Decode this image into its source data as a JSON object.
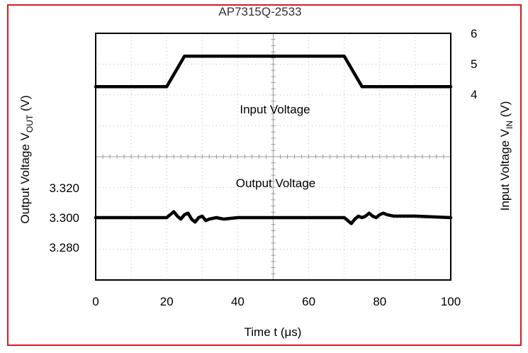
{
  "chart_data": {
    "type": "line",
    "title": "AP7315Q-2533",
    "xlabel": "Time t (μs)",
    "xlim": [
      0,
      100
    ],
    "x_ticks": [
      "0",
      "20",
      "40",
      "60",
      "80",
      "100"
    ],
    "grid": true,
    "left_axis": {
      "label_main": "Output Voltage V",
      "label_sub": "OUT",
      "label_unit": " (V)",
      "ticks": [
        "3.320",
        "3.300",
        "3.280"
      ],
      "tick_values": [
        3.32,
        3.3,
        3.28
      ]
    },
    "right_axis": {
      "label_main": "Input Voltage V",
      "label_sub": "IN",
      "label_unit": " (V)",
      "ticks": [
        "6",
        "5",
        "4"
      ],
      "tick_values": [
        6,
        5,
        4
      ]
    },
    "annotations": [
      "Input Voltage",
      "Output Voltage"
    ],
    "series": [
      {
        "axis": "right",
        "x": [
          0,
          20,
          25,
          70,
          75,
          100
        ],
        "y": [
          4.25,
          4.25,
          5.25,
          5.25,
          4.25,
          4.25
        ]
      },
      {
        "axis": "left",
        "x": [
          0,
          20,
          21,
          22,
          23,
          24,
          25,
          26,
          27,
          28,
          29,
          30,
          31,
          32,
          34,
          36,
          40,
          50,
          60,
          70,
          71,
          72,
          73,
          74,
          75,
          76,
          77,
          78,
          79,
          80,
          81,
          82,
          84,
          86,
          90,
          100
        ],
        "y": [
          3.3,
          3.3,
          3.302,
          3.304,
          3.301,
          3.299,
          3.302,
          3.303,
          3.299,
          3.297,
          3.3,
          3.301,
          3.298,
          3.299,
          3.3,
          3.299,
          3.3,
          3.3,
          3.3,
          3.3,
          3.298,
          3.296,
          3.299,
          3.301,
          3.3,
          3.301,
          3.303,
          3.301,
          3.3,
          3.302,
          3.303,
          3.302,
          3.301,
          3.301,
          3.301,
          3.3
        ]
      }
    ],
    "colors": {
      "trace": "#000000",
      "grid": "#bbbbbb",
      "frame": "#d71920"
    }
  }
}
